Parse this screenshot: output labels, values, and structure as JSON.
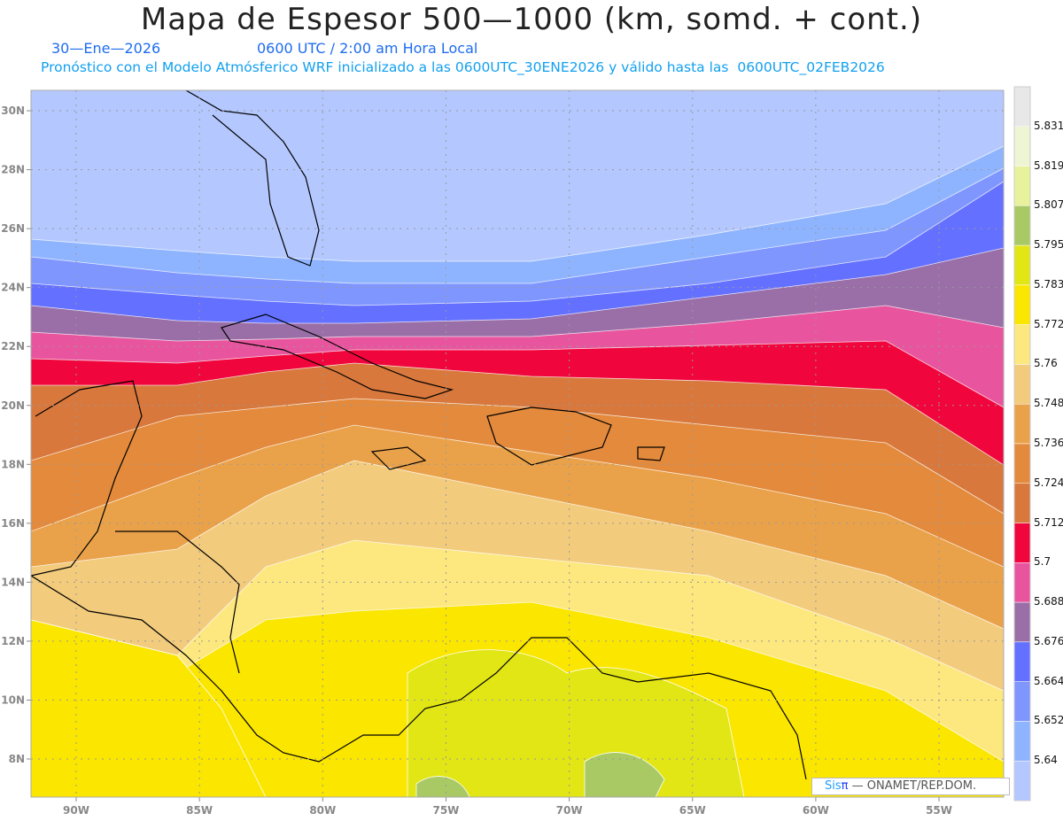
{
  "header": {
    "title": "Mapa de Espesor 500—1000 (km, somd. + cont.)",
    "date": "30—Ene—2026",
    "time": "0600 UTC / 2:00 am Hora Local",
    "model_info": "Pronóstico con el Modelo Atmósferico WRF inicializado a las 0600UTC_30ENE2026 y válido hasta las  0600UTC_02FEB2026"
  },
  "axes": {
    "lon_labels": [
      "90W",
      "85W",
      "80W",
      "75W",
      "70W",
      "65W",
      "60W",
      "55W"
    ],
    "lon_values": [
      -90,
      -85,
      -80,
      -75,
      -70,
      -65,
      -60,
      -55
    ],
    "lat_labels": [
      "30N",
      "28N",
      "26N",
      "24N",
      "22N",
      "20N",
      "18N",
      "16N",
      "14N",
      "12N",
      "10N",
      "8N"
    ],
    "lat_values": [
      30,
      28,
      26,
      24,
      22,
      20,
      18,
      16,
      14,
      12,
      10,
      8
    ]
  },
  "colorbar": {
    "labels": [
      "5.831",
      "5.819",
      "5.807",
      "5.795",
      "5.783",
      "5.772",
      "5.76",
      "5.748",
      "5.736",
      "5.724",
      "5.712",
      "5.7",
      "5.688",
      "5.676",
      "5.664",
      "5.652",
      "5.64"
    ],
    "colors_top_to_bottom": [
      "#e8e8e8",
      "#eef5d4",
      "#e8f29c",
      "#a9c964",
      "#e2e614",
      "#fbe600",
      "#fde77f",
      "#f2cb7d",
      "#eaa24a",
      "#e38a3c",
      "#d8783c",
      "#f0053c",
      "#e8559e",
      "#9a6fa8",
      "#6470ff",
      "#7f96ff",
      "#8fb4ff",
      "#b4c8ff"
    ]
  },
  "credit": {
    "sis": "Sis",
    "pi": "π",
    "text": " —  ONAMET/REP.DOM."
  }
}
